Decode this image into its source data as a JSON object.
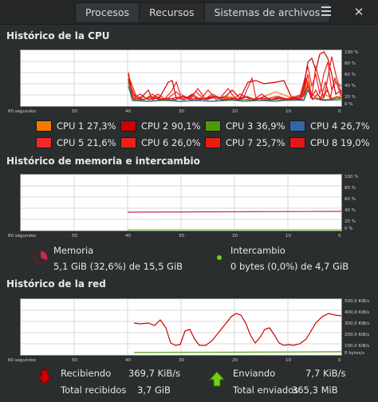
{
  "window": {
    "tabs": [
      {
        "label": "Procesos",
        "active": false
      },
      {
        "label": "Recursos",
        "active": true
      },
      {
        "label": "Sistemas de archivos",
        "active": false
      }
    ]
  },
  "cpu": {
    "title": "Histórico de la CPU",
    "y_ticks": [
      "100 %",
      "80 %",
      "60 %",
      "40 %",
      "20 %",
      "0 %"
    ],
    "x_ticks": [
      "60 segundos",
      "50",
      "40",
      "30",
      "20",
      "10",
      "0"
    ],
    "legend": [
      {
        "label": "CPU 1 27,3%",
        "color": "#f57900"
      },
      {
        "label": "CPU 2 90,1%",
        "color": "#cc0000"
      },
      {
        "label": "CPU 3 36,9%",
        "color": "#4e9a06"
      },
      {
        "label": "CPU 4 26,7%",
        "color": "#3465a4"
      },
      {
        "label": "CPU 5 21,6%",
        "color": "#ef2929"
      },
      {
        "label": "CPU 6 26,0%",
        "color": "#e8211a"
      },
      {
        "label": "CPU 7 25,7%",
        "color": "#ea1c12"
      },
      {
        "label": "CPU 8 19,0%",
        "color": "#e01818"
      }
    ]
  },
  "memory": {
    "title": "Histórico de memoria e intercambio",
    "y_ticks": [
      "100 %",
      "80 %",
      "60 %",
      "40 %",
      "20 %",
      "0 %"
    ],
    "x_ticks": [
      "60 segundos",
      "50",
      "40",
      "30",
      "20",
      "10",
      "0"
    ],
    "mem_label": "Memoria",
    "mem_value": "5,1 GiB (32,6%) de 15,5 GiB",
    "swap_label": "Intercambio",
    "swap_value": "0 bytes (0,0%) de 4,7 GiB",
    "mem_color": "#cc2a4a",
    "swap_color": "#73d216"
  },
  "network": {
    "title": "Histórico de la red",
    "y_ticks": [
      "500,0 KiB/s",
      "400,0 KiB/s",
      "300,0 KiB/s",
      "200,0 KiB/s",
      "100,0 KiB/s",
      "0 bytes/s"
    ],
    "x_ticks": [
      "60 segundos",
      "50",
      "40",
      "30",
      "20",
      "10",
      "0"
    ],
    "recv_label": "Recibiendo",
    "recv_value": "369,7 KiB/s",
    "recv_total_label": "Total recibidos",
    "recv_total_value": "3,7 GiB",
    "send_label": "Enviando",
    "send_value": "7,7 KiB/s",
    "send_total_label": "Total enviados",
    "send_total_value": "365,3 MiB",
    "recv_color": "#cc0000",
    "send_color": "#4e9a06"
  }
}
